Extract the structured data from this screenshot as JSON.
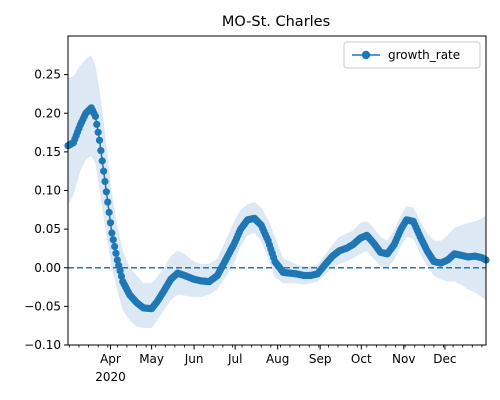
{
  "chart_data": {
    "type": "line",
    "title": "MO-St. Charles",
    "xlabel": "",
    "ylabel": "",
    "xlim": [
      "2020-03-01",
      "2020-12-31"
    ],
    "ylim": [
      -0.1,
      0.3
    ],
    "y_ticks": [
      -0.1,
      -0.05,
      0.0,
      0.05,
      0.1,
      0.15,
      0.2,
      0.25
    ],
    "y_tick_labels": [
      "−0.10",
      "−0.05",
      "0.00",
      "0.05",
      "0.10",
      "0.15",
      "0.20",
      "0.25"
    ],
    "x_ticks": [
      "2020-04-01",
      "2020-05-01",
      "2020-06-01",
      "2020-07-01",
      "2020-08-01",
      "2020-09-01",
      "2020-10-01",
      "2020-11-01",
      "2020-12-01"
    ],
    "x_tick_labels": [
      "Apr",
      "May",
      "Jun",
      "Jul",
      "Aug",
      "Sep",
      "Oct",
      "Nov",
      "Dec"
    ],
    "x_year_label": "2020",
    "legend": {
      "position": "top-right",
      "entries": [
        "growth_rate"
      ]
    },
    "reference_line": {
      "y": 0.0,
      "style": "dashed"
    },
    "colors": {
      "line": "#1f77b4",
      "band": "#dce8f4"
    },
    "series": [
      {
        "name": "growth_rate",
        "x": [
          "2020-03-01",
          "2020-03-05",
          "2020-03-10",
          "2020-03-14",
          "2020-03-18",
          "2020-03-21",
          "2020-03-24",
          "2020-03-27",
          "2020-03-30",
          "2020-04-02",
          "2020-04-06",
          "2020-04-10",
          "2020-04-15",
          "2020-04-20",
          "2020-04-25",
          "2020-05-01",
          "2020-05-05",
          "2020-05-10",
          "2020-05-15",
          "2020-05-20",
          "2020-05-25",
          "2020-06-01",
          "2020-06-06",
          "2020-06-12",
          "2020-06-18",
          "2020-06-24",
          "2020-06-30",
          "2020-07-05",
          "2020-07-10",
          "2020-07-15",
          "2020-07-20",
          "2020-07-25",
          "2020-07-30",
          "2020-08-05",
          "2020-08-10",
          "2020-08-15",
          "2020-08-20",
          "2020-08-25",
          "2020-08-30",
          "2020-09-05",
          "2020-09-10",
          "2020-09-15",
          "2020-09-20",
          "2020-09-25",
          "2020-09-30",
          "2020-10-05",
          "2020-10-10",
          "2020-10-15",
          "2020-10-20",
          "2020-10-25",
          "2020-10-30",
          "2020-11-03",
          "2020-11-08",
          "2020-11-13",
          "2020-11-18",
          "2020-11-23",
          "2020-11-28",
          "2020-12-03",
          "2020-12-08",
          "2020-12-13",
          "2020-12-18",
          "2020-12-23",
          "2020-12-28",
          "2020-12-31"
        ],
        "values": [
          0.158,
          0.162,
          0.185,
          0.2,
          0.207,
          0.196,
          0.165,
          0.125,
          0.085,
          0.045,
          0.01,
          -0.018,
          -0.035,
          -0.045,
          -0.052,
          -0.053,
          -0.044,
          -0.03,
          -0.015,
          -0.007,
          -0.01,
          -0.015,
          -0.017,
          -0.018,
          -0.01,
          0.01,
          0.03,
          0.05,
          0.062,
          0.064,
          0.055,
          0.035,
          0.008,
          -0.006,
          -0.007,
          -0.008,
          -0.01,
          -0.01,
          -0.008,
          0.005,
          0.015,
          0.022,
          0.025,
          0.03,
          0.038,
          0.042,
          0.032,
          0.02,
          0.018,
          0.03,
          0.05,
          0.062,
          0.06,
          0.04,
          0.022,
          0.008,
          0.006,
          0.01,
          0.018,
          0.016,
          0.014,
          0.015,
          0.013,
          0.01
        ],
        "lower": [
          0.08,
          0.095,
          0.125,
          0.14,
          0.145,
          0.135,
          0.1,
          0.065,
          0.03,
          0.0,
          -0.03,
          -0.055,
          -0.068,
          -0.076,
          -0.078,
          -0.078,
          -0.068,
          -0.055,
          -0.042,
          -0.035,
          -0.036,
          -0.038,
          -0.038,
          -0.035,
          -0.028,
          -0.012,
          0.005,
          0.028,
          0.042,
          0.045,
          0.035,
          0.012,
          -0.012,
          -0.02,
          -0.02,
          -0.02,
          -0.022,
          -0.02,
          -0.018,
          -0.008,
          0.0,
          0.005,
          0.008,
          0.012,
          0.018,
          0.022,
          0.012,
          0.002,
          0.0,
          0.01,
          0.028,
          0.04,
          0.038,
          0.018,
          0.002,
          -0.01,
          -0.015,
          -0.018,
          -0.018,
          -0.022,
          -0.028,
          -0.032,
          -0.038,
          -0.042
        ],
        "upper": [
          0.245,
          0.248,
          0.262,
          0.27,
          0.275,
          0.262,
          0.23,
          0.19,
          0.145,
          0.095,
          0.055,
          0.022,
          0.0,
          -0.01,
          -0.02,
          -0.02,
          -0.012,
          0.0,
          0.015,
          0.022,
          0.018,
          0.008,
          0.005,
          0.005,
          0.012,
          0.035,
          0.06,
          0.075,
          0.082,
          0.085,
          0.078,
          0.062,
          0.04,
          0.012,
          0.008,
          0.004,
          0.002,
          0.002,
          0.004,
          0.018,
          0.03,
          0.04,
          0.044,
          0.048,
          0.058,
          0.06,
          0.052,
          0.04,
          0.035,
          0.05,
          0.068,
          0.08,
          0.078,
          0.06,
          0.045,
          0.035,
          0.035,
          0.042,
          0.052,
          0.055,
          0.058,
          0.06,
          0.064,
          0.068
        ]
      }
    ]
  }
}
